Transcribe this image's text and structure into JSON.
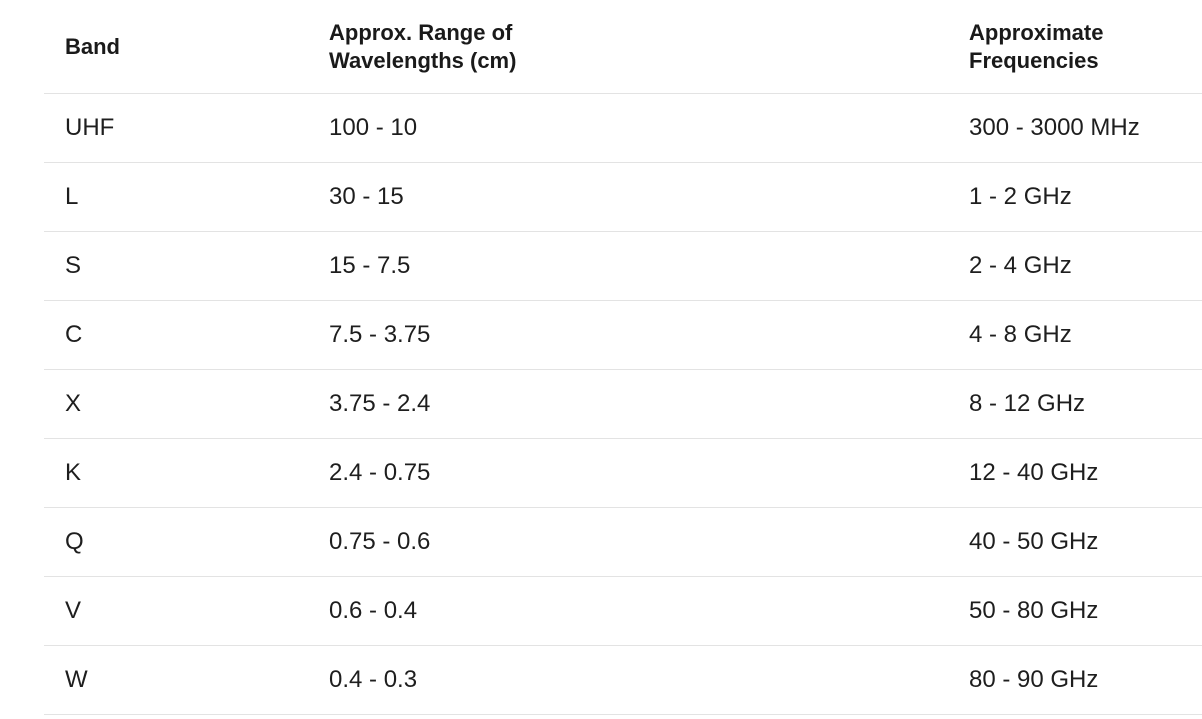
{
  "table": {
    "headers": [
      {
        "lines": [
          "Band"
        ]
      },
      {
        "lines": [
          "Approx. Range of",
          "Wavelengths (cm)"
        ]
      },
      {
        "lines": [
          "Approximate",
          "Frequencies"
        ]
      }
    ],
    "rows": [
      [
        "UHF",
        "100 - 10",
        "300 - 3000 MHz"
      ],
      [
        "L",
        "30 - 15",
        "1 - 2 GHz"
      ],
      [
        "S",
        "15 - 7.5",
        "2 - 4 GHz"
      ],
      [
        "C",
        "7.5 - 3.75",
        "4 - 8 GHz"
      ],
      [
        "X",
        "3.75 - 2.4",
        "8 - 12 GHz"
      ],
      [
        "K",
        "2.4 - 0.75",
        "12 - 40 GHz"
      ],
      [
        "Q",
        "0.75 - 0.6",
        "40 - 50 GHz"
      ],
      [
        "V",
        "0.6 - 0.4",
        "50 - 80 GHz"
      ],
      [
        "W",
        "0.4 - 0.3",
        "80 - 90 GHz"
      ]
    ]
  }
}
